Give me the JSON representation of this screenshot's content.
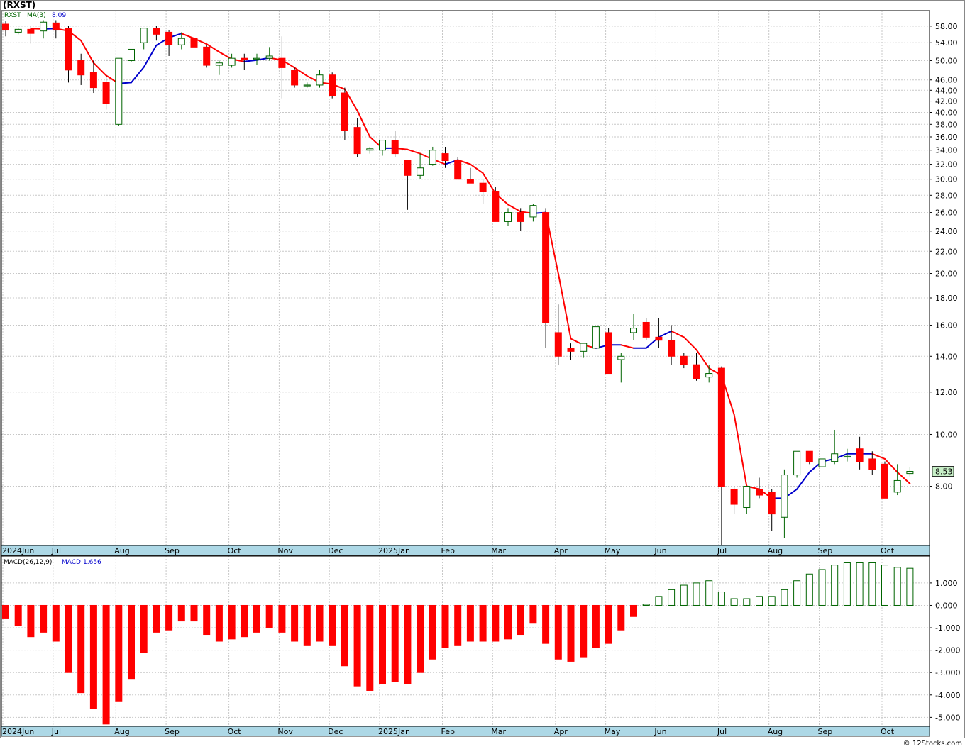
{
  "header": {
    "title": "(RXST)"
  },
  "legend": {
    "symbol": "RXST",
    "ma_label": "MA(3)",
    "ma_value": "8.09"
  },
  "macd_legend": {
    "label": "MACD(26,12,9)",
    "value_label": "MACD:1.656"
  },
  "last_price_label": "8.53",
  "footer": {
    "credit": "© 12Stocks.com"
  },
  "colors": {
    "up": "#006400",
    "down": "#ff0000",
    "ma_down": "#ff0000",
    "ma_up": "#0000cc",
    "axis_band": "#add8e6",
    "grid": "#c8c8c8",
    "label_box": "#c8f0c8"
  },
  "chart_data": [
    {
      "type": "candlestick",
      "title": "(RXST)",
      "y_scale": "log",
      "ylim": [
        6.2,
        62
      ],
      "y_ticks": [
        8.0,
        10.0,
        12.0,
        14.0,
        16.0,
        18.0,
        20.0,
        22.0,
        24.0,
        26.0,
        28.0,
        30.0,
        32.0,
        34.0,
        36.0,
        38.0,
        40.0,
        42.0,
        44.0,
        46.0,
        50.0,
        54.0,
        58.0
      ],
      "y_tick_labels": [
        "8.00",
        "10.00",
        "12.00",
        "14.00",
        "16.00",
        "18.00",
        "20.00",
        "22.00",
        "24.00",
        "26.00",
        "28.00",
        "30.00",
        "32.00",
        "34.00",
        "36.00",
        "38.00",
        "40.00",
        "42.00",
        "44.00",
        "46.00",
        "50.00",
        "54.00",
        "58.00"
      ],
      "x_labels": [
        "2024Jun",
        "Jul",
        "Aug",
        "Sep",
        "Oct",
        "Nov",
        "Dec",
        "2025Jan",
        "Feb",
        "Mar",
        "Apr",
        "May",
        "Jun",
        "Jul",
        "Aug",
        "Sep",
        "Oct"
      ],
      "x_label_week_index": [
        0,
        4,
        9,
        13,
        18,
        22,
        26,
        30,
        35,
        39,
        44,
        48,
        52,
        57,
        61,
        65,
        70
      ],
      "weeks": [
        "2024-06-03",
        "2024-06-10",
        "2024-06-17",
        "2024-06-24",
        "2024-07-01",
        "2024-07-08",
        "2024-07-15",
        "2024-07-22",
        "2024-07-29",
        "2024-08-05",
        "2024-08-12",
        "2024-08-19",
        "2024-08-26",
        "2024-09-02",
        "2024-09-09",
        "2024-09-16",
        "2024-09-23",
        "2024-09-30",
        "2024-10-07",
        "2024-10-14",
        "2024-10-21",
        "2024-10-28",
        "2024-11-04",
        "2024-11-11",
        "2024-11-18",
        "2024-11-25",
        "2024-12-02",
        "2024-12-09",
        "2024-12-16",
        "2024-12-23",
        "2024-12-30",
        "2025-01-06",
        "2025-01-13",
        "2025-01-20",
        "2025-01-27",
        "2025-02-03",
        "2025-02-10",
        "2025-02-17",
        "2025-02-24",
        "2025-03-03",
        "2025-03-10",
        "2025-03-17",
        "2025-03-24",
        "2025-03-31",
        "2025-04-07",
        "2025-04-14",
        "2025-04-21",
        "2025-04-28",
        "2025-05-05",
        "2025-05-12",
        "2025-05-19",
        "2025-05-26",
        "2025-06-02",
        "2025-06-09",
        "2025-06-16",
        "2025-06-23",
        "2025-06-30",
        "2025-07-07",
        "2025-07-14",
        "2025-07-21",
        "2025-07-28",
        "2025-08-04",
        "2025-08-11",
        "2025-08-18",
        "2025-08-25",
        "2025-09-01",
        "2025-09-08",
        "2025-09-15",
        "2025-09-22",
        "2025-09-29",
        "2025-10-06",
        "2025-10-13",
        "2025-10-20"
      ],
      "ohlc": [
        [
          58.5,
          59.2,
          55.5,
          57.0
        ],
        [
          56.5,
          57.5,
          56.0,
          57.2
        ],
        [
          57.2,
          58.0,
          53.8,
          56.2
        ],
        [
          56.8,
          59.5,
          55.0,
          59.0
        ],
        [
          58.8,
          59.5,
          55.0,
          57.0
        ],
        [
          57.5,
          58.0,
          45.5,
          48.0
        ],
        [
          50.0,
          51.5,
          45.0,
          47.0
        ],
        [
          47.5,
          50.0,
          43.5,
          44.5
        ],
        [
          45.5,
          47.0,
          40.5,
          41.5
        ],
        [
          38.0,
          50.5,
          37.8,
          50.5
        ],
        [
          50.0,
          52.5,
          49.8,
          52.5
        ],
        [
          54.0,
          57.5,
          52.5,
          57.5
        ],
        [
          57.5,
          58.0,
          54.5,
          56.0
        ],
        [
          56.5,
          57.0,
          51.0,
          53.5
        ],
        [
          53.5,
          56.5,
          52.5,
          55.0
        ],
        [
          55.0,
          57.0,
          52.0,
          53.0
        ],
        [
          53.0,
          53.5,
          48.5,
          49.0
        ],
        [
          49.0,
          50.0,
          47.0,
          49.5
        ],
        [
          49.0,
          51.5,
          48.5,
          50.5
        ],
        [
          50.5,
          51.5,
          48.0,
          50.3
        ],
        [
          50.5,
          51.5,
          49.0,
          50.5
        ],
        [
          50.5,
          53.0,
          50.0,
          51.0
        ],
        [
          50.5,
          55.5,
          42.5,
          48.5
        ],
        [
          48.0,
          48.5,
          44.5,
          45.0
        ],
        [
          45.0,
          45.5,
          44.5,
          45.0
        ],
        [
          45.0,
          48.0,
          44.5,
          47.0
        ],
        [
          47.0,
          47.5,
          42.5,
          43.0
        ],
        [
          43.5,
          44.5,
          35.5,
          37.0
        ],
        [
          37.5,
          39.0,
          33.0,
          33.5
        ],
        [
          34.0,
          34.5,
          33.5,
          34.2
        ],
        [
          34.0,
          35.5,
          33.2,
          35.5
        ],
        [
          35.5,
          37.0,
          33.0,
          33.5
        ],
        [
          32.5,
          32.6,
          26.3,
          30.5
        ],
        [
          30.5,
          33.5,
          30.0,
          31.5
        ],
        [
          32.0,
          34.5,
          31.8,
          34.0
        ],
        [
          33.5,
          34.5,
          31.5,
          32.5
        ],
        [
          32.5,
          33.0,
          30.0,
          30.0
        ],
        [
          30.0,
          31.5,
          29.5,
          29.5
        ],
        [
          29.5,
          30.0,
          27.0,
          28.5
        ],
        [
          28.5,
          29.0,
          25.0,
          25.0
        ],
        [
          25.0,
          26.5,
          24.5,
          26.0
        ],
        [
          26.0,
          26.5,
          24.0,
          25.0
        ],
        [
          25.5,
          27.0,
          25.0,
          26.8
        ],
        [
          26.0,
          26.5,
          14.5,
          16.2
        ],
        [
          15.5,
          17.5,
          13.5,
          14.0
        ],
        [
          14.5,
          14.8,
          13.8,
          14.3
        ],
        [
          14.3,
          14.8,
          13.9,
          14.8
        ],
        [
          14.5,
          15.9,
          14.5,
          15.9
        ],
        [
          15.5,
          15.8,
          13.0,
          13.0
        ],
        [
          13.8,
          14.2,
          12.5,
          14.0
        ],
        [
          15.5,
          16.8,
          15.0,
          15.8
        ],
        [
          16.2,
          16.5,
          15.0,
          15.2
        ],
        [
          15.2,
          16.5,
          14.5,
          15.0
        ],
        [
          15.0,
          16.0,
          13.5,
          14.0
        ],
        [
          14.0,
          14.2,
          13.3,
          13.5
        ],
        [
          13.5,
          14.2,
          12.6,
          12.7
        ],
        [
          12.8,
          13.5,
          12.5,
          13.0
        ],
        [
          13.3,
          13.4,
          6.2,
          8.0
        ],
        [
          7.9,
          8.0,
          7.1,
          7.4
        ],
        [
          7.3,
          8.0,
          7.1,
          8.0
        ],
        [
          7.9,
          8.3,
          7.6,
          7.7
        ],
        [
          7.8,
          7.9,
          6.6,
          7.1
        ],
        [
          7.0,
          8.6,
          6.4,
          8.4
        ],
        [
          8.4,
          9.3,
          8.3,
          9.3
        ],
        [
          9.3,
          9.3,
          8.8,
          8.9
        ],
        [
          8.7,
          9.2,
          8.3,
          9.0
        ],
        [
          8.9,
          10.2,
          8.8,
          9.2
        ],
        [
          9.1,
          9.4,
          8.9,
          9.1
        ],
        [
          9.4,
          9.9,
          8.6,
          8.9
        ],
        [
          9.0,
          9.3,
          8.4,
          8.6
        ],
        [
          8.8,
          8.9,
          7.6,
          7.6
        ],
        [
          7.8,
          8.8,
          7.7,
          8.2
        ],
        [
          8.45,
          8.7,
          8.35,
          8.53
        ]
      ],
      "ma3": [
        null,
        null,
        57.4,
        57.3,
        57.4,
        56.8,
        54.5,
        49.5,
        46.9,
        45.3,
        45.5,
        48.6,
        53.4,
        55.2,
        56.2,
        55.0,
        53.7,
        51.9,
        50.3,
        49.8,
        50.1,
        50.6,
        50.1,
        48.5,
        46.8,
        45.5,
        45.2,
        44.2,
        40.3,
        36.0,
        34.3,
        34.3,
        34.1,
        33.5,
        32.7,
        32.0,
        32.6,
        32.0,
        30.8,
        28.2,
        26.9,
        26.1,
        25.9,
        26.0,
        20.0,
        15.1,
        14.7,
        14.5,
        14.7,
        14.7,
        14.5,
        14.5,
        15.2,
        15.6,
        15.2,
        14.4,
        13.3,
        12.9,
        10.9,
        8.0,
        7.9,
        7.6,
        7.6,
        7.9,
        8.5,
        8.9,
        9.0,
        9.2,
        9.2,
        9.2,
        9.0,
        8.5,
        8.09
      ]
    },
    {
      "type": "bar",
      "title": "MACD(26,12,9)",
      "ylim": [
        -5.4,
        2.2
      ],
      "y_ticks": [
        1.0,
        0.0,
        -1.0,
        -2.0,
        -3.0,
        -4.0,
        -5.0
      ],
      "y_tick_labels": [
        "1.000",
        "0.000",
        "-1.000",
        "-2.000",
        "-3.000",
        "-4.000",
        "-5.000"
      ],
      "last_value": 1.656,
      "values": [
        -0.6,
        -0.9,
        -1.4,
        -1.2,
        -1.6,
        -3.0,
        -3.9,
        -4.6,
        -5.3,
        -4.3,
        -3.3,
        -2.1,
        -1.2,
        -1.1,
        -0.7,
        -0.7,
        -1.3,
        -1.6,
        -1.5,
        -1.4,
        -1.2,
        -1.0,
        -1.2,
        -1.6,
        -1.8,
        -1.6,
        -1.8,
        -2.7,
        -3.6,
        -3.8,
        -3.5,
        -3.4,
        -3.5,
        -3.0,
        -2.4,
        -1.9,
        -1.8,
        -1.6,
        -1.6,
        -1.6,
        -1.5,
        -1.3,
        -0.8,
        -1.7,
        -2.4,
        -2.5,
        -2.3,
        -1.9,
        -1.7,
        -1.1,
        -0.5,
        0.05,
        0.4,
        0.7,
        0.9,
        1.0,
        1.1,
        0.6,
        0.3,
        0.3,
        0.4,
        0.4,
        0.7,
        1.1,
        1.4,
        1.6,
        1.8,
        1.9,
        1.9,
        1.9,
        1.8,
        1.7,
        1.656
      ]
    }
  ]
}
